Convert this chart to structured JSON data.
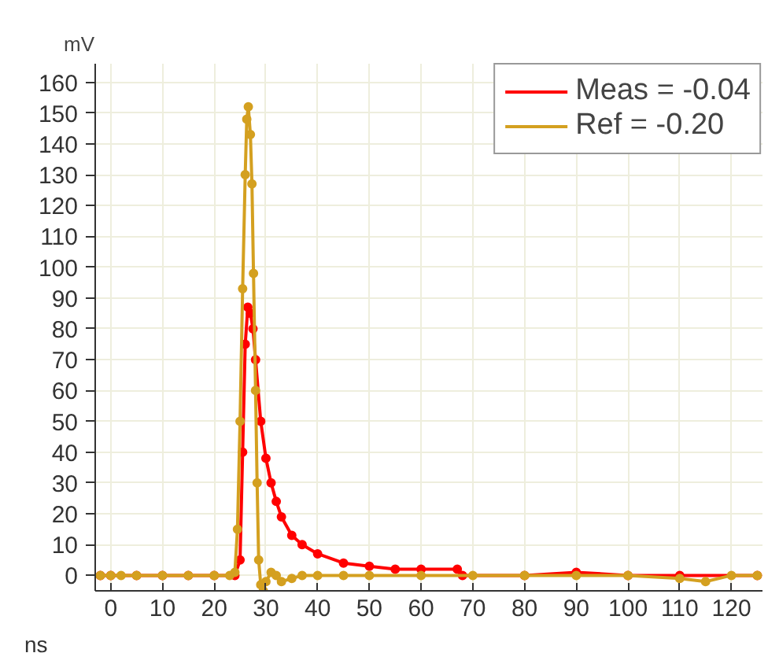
{
  "chart_data": {
    "type": "line",
    "xlabel": "ns",
    "ylabel": "mV",
    "xlim": [
      -3,
      126
    ],
    "ylim": [
      -5,
      166
    ],
    "xticks": [
      0,
      10,
      20,
      30,
      40,
      50,
      60,
      70,
      80,
      90,
      100,
      110,
      120
    ],
    "yticks": [
      0,
      10,
      20,
      30,
      40,
      50,
      60,
      70,
      80,
      90,
      100,
      110,
      120,
      130,
      140,
      150,
      160
    ],
    "grid": true,
    "legend": "top right",
    "marker": "circle",
    "line_style": "solid",
    "series": [
      {
        "name": "Meas = -0.04",
        "color": "#ff0000",
        "x": [
          -2,
          0,
          5,
          10,
          15,
          20,
          24,
          25,
          25.5,
          26,
          26.5,
          27,
          27.5,
          28,
          29,
          30,
          31,
          32,
          33,
          35,
          37,
          40,
          45,
          50,
          55,
          60,
          67,
          68,
          80,
          90,
          100,
          110,
          125
        ],
        "values": [
          0,
          0,
          0,
          0,
          0,
          0,
          0,
          5,
          40,
          75,
          87,
          85,
          80,
          70,
          50,
          38,
          30,
          24,
          19,
          13,
          10,
          7,
          4,
          3,
          2,
          2,
          2,
          0,
          0,
          1,
          0,
          0,
          0
        ]
      },
      {
        "name": "Ref = -0.20",
        "color": "#d4a020",
        "x": [
          -2,
          0,
          2,
          5,
          10,
          15,
          20,
          23,
          24,
          24.5,
          25,
          25.5,
          26,
          26.3,
          26.6,
          27,
          27.3,
          27.6,
          28,
          28.3,
          28.6,
          29,
          29.5,
          30,
          31,
          32,
          33,
          35,
          37,
          40,
          45,
          50,
          60,
          70,
          80,
          90,
          100,
          110,
          115,
          120,
          125
        ],
        "values": [
          0,
          0,
          0,
          0,
          0,
          0,
          0,
          0,
          1,
          15,
          50,
          93,
          130,
          148,
          152,
          143,
          127,
          98,
          60,
          30,
          5,
          -3,
          -5,
          -2,
          1,
          0,
          -2,
          -1,
          0,
          0,
          0,
          0,
          0,
          0,
          0,
          0,
          0,
          -1,
          -2,
          0,
          0
        ]
      }
    ]
  }
}
